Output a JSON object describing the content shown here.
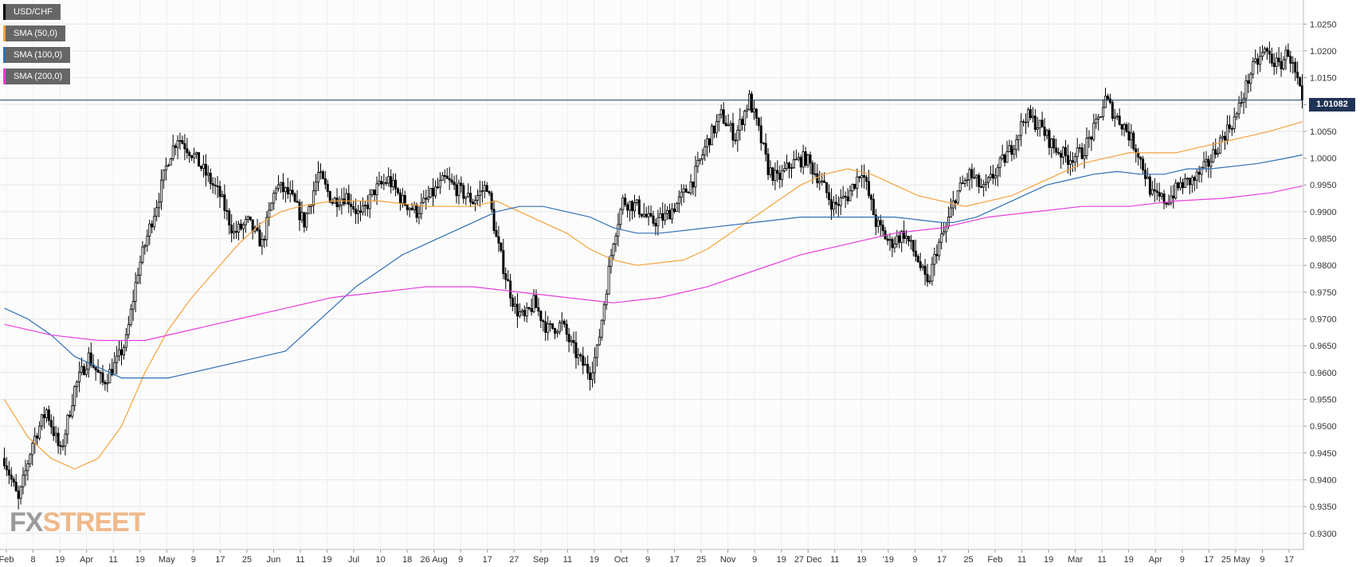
{
  "chart_data": {
    "type": "candlestick",
    "symbol": "USD/CHF",
    "ylim": [
      0.927,
      1.0295
    ],
    "yticks": [
      "1.0250",
      "1.0200",
      "1.0150",
      "1.0100",
      "1.0050",
      "1.0000",
      "0.9950",
      "0.9900",
      "0.9850",
      "0.9800",
      "0.9750",
      "0.9700",
      "0.9650",
      "0.9600",
      "0.9550",
      "0.9500",
      "0.9450",
      "0.9400",
      "0.9350",
      "0.9300"
    ],
    "xticks": [
      "Feb",
      "8",
      "19",
      "Apr",
      "11",
      "19",
      "May",
      "9",
      "17",
      "25",
      "Jun",
      "11",
      "19",
      "Jul",
      "10",
      "18",
      "26 Aug",
      "9",
      "17",
      "27",
      "Sep",
      "11",
      "19",
      "Oct",
      "9",
      "17",
      "25",
      "Nov",
      "9",
      "19",
      "27 Dec",
      "11",
      "19",
      "'19",
      "9",
      "17",
      "25",
      "Feb",
      "11",
      "19",
      "Mar",
      "11",
      "19",
      "Apr",
      "9",
      "17",
      "25 May",
      "9",
      "17"
    ],
    "current_price": "1.01082",
    "current_value": 1.01082,
    "legend": [
      {
        "label": "USD/CHF",
        "color": "#000000"
      },
      {
        "label": "SMA (50,0)",
        "color": "#f7a13b"
      },
      {
        "label": "SMA (100,0)",
        "color": "#2f6fb5"
      },
      {
        "label": "SMA (200,0)",
        "color": "#e83ee0"
      }
    ],
    "close_path": [
      [
        0,
        0.944
      ],
      [
        6,
        0.936
      ],
      [
        12,
        0.947
      ],
      [
        18,
        0.953
      ],
      [
        24,
        0.945
      ],
      [
        30,
        0.957
      ],
      [
        36,
        0.963
      ],
      [
        42,
        0.958
      ],
      [
        48,
        0.962
      ],
      [
        52,
        0.966
      ],
      [
        57,
        0.979
      ],
      [
        62,
        0.987
      ],
      [
        66,
        0.993
      ],
      [
        70,
        1.0
      ],
      [
        74,
        1.004
      ],
      [
        80,
        1.001
      ],
      [
        86,
        0.997
      ],
      [
        92,
        0.993
      ],
      [
        98,
        0.986
      ],
      [
        104,
        0.988
      ],
      [
        110,
        0.984
      ],
      [
        116,
        0.995
      ],
      [
        122,
        0.993
      ],
      [
        128,
        0.988
      ],
      [
        134,
        0.997
      ],
      [
        140,
        0.992
      ],
      [
        146,
        0.993
      ],
      [
        152,
        0.989
      ],
      [
        158,
        0.994
      ],
      [
        164,
        0.996
      ],
      [
        170,
        0.992
      ],
      [
        176,
        0.99
      ],
      [
        182,
        0.993
      ],
      [
        188,
        0.996
      ],
      [
        194,
        0.994
      ],
      [
        200,
        0.992
      ],
      [
        206,
        0.995
      ],
      [
        210,
        0.985
      ],
      [
        214,
        0.978
      ],
      [
        218,
        0.972
      ],
      [
        222,
        0.97
      ],
      [
        226,
        0.973
      ],
      [
        232,
        0.968
      ],
      [
        238,
        0.969
      ],
      [
        242,
        0.965
      ],
      [
        246,
        0.962
      ],
      [
        250,
        0.96
      ],
      [
        253,
        0.964
      ],
      [
        256,
        0.973
      ],
      [
        260,
        0.985
      ],
      [
        264,
        0.992
      ],
      [
        270,
        0.991
      ],
      [
        276,
        0.988
      ],
      [
        282,
        0.989
      ],
      [
        288,
        0.992
      ],
      [
        294,
        0.996
      ],
      [
        300,
        1.003
      ],
      [
        306,
        1.008
      ],
      [
        312,
        1.004
      ],
      [
        318,
        1.011
      ],
      [
        322,
        1.005
      ],
      [
        326,
        0.998
      ],
      [
        330,
        0.996
      ],
      [
        336,
        0.999
      ],
      [
        342,
        1.0
      ],
      [
        348,
        0.996
      ],
      [
        354,
        0.991
      ],
      [
        360,
        0.993
      ],
      [
        366,
        0.998
      ],
      [
        372,
        0.988
      ],
      [
        378,
        0.984
      ],
      [
        384,
        0.986
      ],
      [
        390,
        0.981
      ],
      [
        394,
        0.976
      ],
      [
        398,
        0.983
      ],
      [
        402,
        0.987
      ],
      [
        406,
        0.993
      ],
      [
        412,
        0.997
      ],
      [
        418,
        0.994
      ],
      [
        424,
        0.998
      ],
      [
        430,
        1.002
      ],
      [
        436,
        1.008
      ],
      [
        442,
        1.006
      ],
      [
        448,
        1.002
      ],
      [
        454,
        1.0
      ],
      [
        460,
        1.001
      ],
      [
        466,
        1.006
      ],
      [
        470,
        1.011
      ],
      [
        474,
        1.008
      ],
      [
        478,
        1.006
      ],
      [
        484,
        1.001
      ],
      [
        490,
        0.993
      ],
      [
        496,
        0.992
      ],
      [
        502,
        0.995
      ],
      [
        508,
        0.996
      ],
      [
        514,
        0.999
      ],
      [
        520,
        1.004
      ],
      [
        526,
        1.008
      ],
      [
        532,
        1.016
      ],
      [
        538,
        1.02
      ],
      [
        544,
        1.017
      ],
      [
        548,
        1.02
      ],
      [
        552,
        1.014
      ],
      [
        554,
        1.0108
      ]
    ],
    "sma50": [
      [
        0,
        0.955
      ],
      [
        10,
        0.948
      ],
      [
        20,
        0.944
      ],
      [
        30,
        0.942
      ],
      [
        40,
        0.944
      ],
      [
        50,
        0.95
      ],
      [
        60,
        0.96
      ],
      [
        70,
        0.968
      ],
      [
        80,
        0.974
      ],
      [
        90,
        0.979
      ],
      [
        100,
        0.984
      ],
      [
        110,
        0.988
      ],
      [
        118,
        0.99
      ],
      [
        126,
        0.991
      ],
      [
        140,
        0.992
      ],
      [
        160,
        0.992
      ],
      [
        180,
        0.991
      ],
      [
        200,
        0.991
      ],
      [
        210,
        0.992
      ],
      [
        220,
        0.99
      ],
      [
        230,
        0.988
      ],
      [
        240,
        0.986
      ],
      [
        250,
        0.983
      ],
      [
        260,
        0.981
      ],
      [
        270,
        0.98
      ],
      [
        290,
        0.981
      ],
      [
        300,
        0.983
      ],
      [
        310,
        0.986
      ],
      [
        320,
        0.989
      ],
      [
        330,
        0.992
      ],
      [
        340,
        0.995
      ],
      [
        350,
        0.997
      ],
      [
        360,
        0.998
      ],
      [
        370,
        0.997
      ],
      [
        380,
        0.995
      ],
      [
        390,
        0.993
      ],
      [
        400,
        0.992
      ],
      [
        410,
        0.991
      ],
      [
        420,
        0.992
      ],
      [
        430,
        0.993
      ],
      [
        440,
        0.995
      ],
      [
        450,
        0.997
      ],
      [
        460,
        0.999
      ],
      [
        470,
        1.0
      ],
      [
        480,
        1.001
      ],
      [
        490,
        1.001
      ],
      [
        500,
        1.001
      ],
      [
        510,
        1.002
      ],
      [
        520,
        1.003
      ],
      [
        530,
        1.004
      ],
      [
        540,
        1.005
      ],
      [
        554,
        1.0068
      ]
    ],
    "sma100": [
      [
        0,
        0.972
      ],
      [
        10,
        0.97
      ],
      [
        20,
        0.967
      ],
      [
        30,
        0.963
      ],
      [
        40,
        0.961
      ],
      [
        50,
        0.959
      ],
      [
        60,
        0.959
      ],
      [
        70,
        0.959
      ],
      [
        80,
        0.96
      ],
      [
        100,
        0.962
      ],
      [
        120,
        0.964
      ],
      [
        130,
        0.968
      ],
      [
        140,
        0.972
      ],
      [
        150,
        0.976
      ],
      [
        160,
        0.979
      ],
      [
        170,
        0.982
      ],
      [
        180,
        0.984
      ],
      [
        190,
        0.986
      ],
      [
        200,
        0.988
      ],
      [
        210,
        0.99
      ],
      [
        220,
        0.991
      ],
      [
        230,
        0.991
      ],
      [
        240,
        0.99
      ],
      [
        250,
        0.989
      ],
      [
        260,
        0.987
      ],
      [
        270,
        0.986
      ],
      [
        280,
        0.986
      ],
      [
        300,
        0.987
      ],
      [
        320,
        0.988
      ],
      [
        340,
        0.989
      ],
      [
        360,
        0.989
      ],
      [
        380,
        0.989
      ],
      [
        390,
        0.9885
      ],
      [
        400,
        0.988
      ],
      [
        405,
        0.988
      ],
      [
        415,
        0.989
      ],
      [
        425,
        0.991
      ],
      [
        435,
        0.993
      ],
      [
        445,
        0.995
      ],
      [
        455,
        0.996
      ],
      [
        465,
        0.997
      ],
      [
        475,
        0.9975
      ],
      [
        485,
        0.997
      ],
      [
        495,
        0.997
      ],
      [
        505,
        0.998
      ],
      [
        515,
        0.998
      ],
      [
        525,
        0.9985
      ],
      [
        535,
        0.999
      ],
      [
        545,
        0.9998
      ],
      [
        554,
        1.0006
      ]
    ],
    "sma200": [
      [
        0,
        0.969
      ],
      [
        20,
        0.967
      ],
      [
        40,
        0.966
      ],
      [
        60,
        0.966
      ],
      [
        80,
        0.968
      ],
      [
        100,
        0.97
      ],
      [
        120,
        0.972
      ],
      [
        140,
        0.974
      ],
      [
        160,
        0.975
      ],
      [
        180,
        0.976
      ],
      [
        200,
        0.976
      ],
      [
        220,
        0.975
      ],
      [
        240,
        0.974
      ],
      [
        260,
        0.973
      ],
      [
        280,
        0.974
      ],
      [
        300,
        0.976
      ],
      [
        320,
        0.979
      ],
      [
        340,
        0.982
      ],
      [
        360,
        0.984
      ],
      [
        380,
        0.986
      ],
      [
        400,
        0.987
      ],
      [
        420,
        0.989
      ],
      [
        440,
        0.99
      ],
      [
        460,
        0.991
      ],
      [
        480,
        0.991
      ],
      [
        500,
        0.992
      ],
      [
        520,
        0.9925
      ],
      [
        540,
        0.9935
      ],
      [
        554,
        0.9948
      ]
    ]
  },
  "watermark": {
    "fx": "FX",
    "street": "STREET"
  }
}
